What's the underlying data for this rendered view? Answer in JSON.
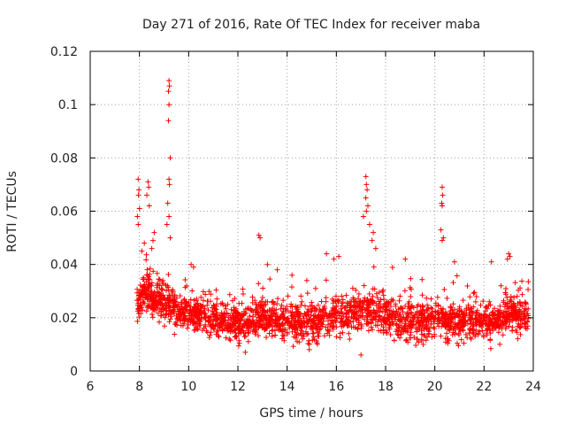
{
  "chart_data": {
    "type": "scatter",
    "title": "Day 271 of 2016, Rate Of TEC Index for receiver maba",
    "xlabel": "GPS time / hours",
    "ylabel": "ROTI / TECUs",
    "xlim": [
      6,
      24
    ],
    "ylim": [
      0,
      0.12
    ],
    "xticks": [
      "6",
      "8",
      "10",
      "12",
      "14",
      "16",
      "18",
      "20",
      "22",
      "24"
    ],
    "yticks": [
      "0",
      "0.02",
      "0.04",
      "0.06",
      "0.08",
      "0.1",
      "0.12"
    ],
    "grid": true,
    "marker": "+",
    "color": "#ff0000",
    "profile": {
      "x": [
        7.9,
        8.0,
        8.3,
        8.6,
        9.0,
        9.5,
        10.0,
        10.5,
        11.0,
        11.5,
        12.0,
        12.5,
        13.0,
        13.5,
        14.0,
        14.5,
        15.0,
        15.5,
        16.0,
        16.5,
        17.0,
        17.5,
        18.0,
        18.5,
        19.0,
        19.5,
        20.0,
        20.5,
        21.0,
        21.5,
        22.0,
        22.5,
        23.0,
        23.5,
        23.8
      ],
      "y": [
        0.024,
        0.028,
        0.03,
        0.028,
        0.026,
        0.023,
        0.022,
        0.021,
        0.02,
        0.019,
        0.018,
        0.019,
        0.02,
        0.019,
        0.019,
        0.018,
        0.018,
        0.019,
        0.021,
        0.021,
        0.022,
        0.023,
        0.021,
        0.019,
        0.019,
        0.019,
        0.02,
        0.019,
        0.019,
        0.019,
        0.019,
        0.019,
        0.022,
        0.021,
        0.02
      ]
    },
    "spread": 0.0055,
    "n_points": 2600,
    "outliers": [
      {
        "x": 9.2,
        "y": 0.109
      },
      {
        "x": 9.22,
        "y": 0.107
      },
      {
        "x": 9.18,
        "y": 0.105
      },
      {
        "x": 9.2,
        "y": 0.1
      },
      {
        "x": 9.18,
        "y": 0.094
      },
      {
        "x": 9.25,
        "y": 0.08
      },
      {
        "x": 9.22,
        "y": 0.07
      },
      {
        "x": 9.2,
        "y": 0.072
      },
      {
        "x": 9.15,
        "y": 0.063
      },
      {
        "x": 9.2,
        "y": 0.058
      },
      {
        "x": 9.12,
        "y": 0.055
      },
      {
        "x": 9.25,
        "y": 0.05
      },
      {
        "x": 7.95,
        "y": 0.072
      },
      {
        "x": 7.98,
        "y": 0.068
      },
      {
        "x": 7.96,
        "y": 0.066
      },
      {
        "x": 8.0,
        "y": 0.061
      },
      {
        "x": 7.92,
        "y": 0.058
      },
      {
        "x": 7.95,
        "y": 0.055
      },
      {
        "x": 8.35,
        "y": 0.071
      },
      {
        "x": 8.38,
        "y": 0.069
      },
      {
        "x": 8.3,
        "y": 0.066
      },
      {
        "x": 8.4,
        "y": 0.062
      },
      {
        "x": 8.6,
        "y": 0.052
      },
      {
        "x": 8.55,
        "y": 0.049
      },
      {
        "x": 8.2,
        "y": 0.048
      },
      {
        "x": 8.1,
        "y": 0.045
      },
      {
        "x": 8.5,
        "y": 0.046
      },
      {
        "x": 17.2,
        "y": 0.073
      },
      {
        "x": 17.22,
        "y": 0.07
      },
      {
        "x": 17.25,
        "y": 0.068
      },
      {
        "x": 17.2,
        "y": 0.065
      },
      {
        "x": 17.28,
        "y": 0.062
      },
      {
        "x": 17.22,
        "y": 0.06
      },
      {
        "x": 17.5,
        "y": 0.052
      },
      {
        "x": 17.45,
        "y": 0.049
      },
      {
        "x": 17.6,
        "y": 0.046
      },
      {
        "x": 17.1,
        "y": 0.058
      },
      {
        "x": 17.35,
        "y": 0.055
      },
      {
        "x": 20.3,
        "y": 0.069
      },
      {
        "x": 20.32,
        "y": 0.066
      },
      {
        "x": 20.28,
        "y": 0.063
      },
      {
        "x": 20.3,
        "y": 0.062
      },
      {
        "x": 20.25,
        "y": 0.053
      },
      {
        "x": 20.35,
        "y": 0.05
      },
      {
        "x": 20.3,
        "y": 0.049
      },
      {
        "x": 12.85,
        "y": 0.051
      },
      {
        "x": 12.9,
        "y": 0.05
      },
      {
        "x": 23.0,
        "y": 0.044
      },
      {
        "x": 23.05,
        "y": 0.043
      },
      {
        "x": 22.95,
        "y": 0.042
      },
      {
        "x": 22.3,
        "y": 0.041
      },
      {
        "x": 15.9,
        "y": 0.042
      },
      {
        "x": 16.1,
        "y": 0.043
      },
      {
        "x": 15.6,
        "y": 0.044
      },
      {
        "x": 13.2,
        "y": 0.04
      },
      {
        "x": 13.6,
        "y": 0.038
      },
      {
        "x": 14.2,
        "y": 0.036
      },
      {
        "x": 14.8,
        "y": 0.034
      },
      {
        "x": 10.1,
        "y": 0.04
      },
      {
        "x": 10.2,
        "y": 0.039
      },
      {
        "x": 18.8,
        "y": 0.042
      },
      {
        "x": 20.8,
        "y": 0.041
      },
      {
        "x": 17.0,
        "y": 0.006
      },
      {
        "x": 12.3,
        "y": 0.007
      },
      {
        "x": 14.9,
        "y": 0.008
      }
    ]
  }
}
